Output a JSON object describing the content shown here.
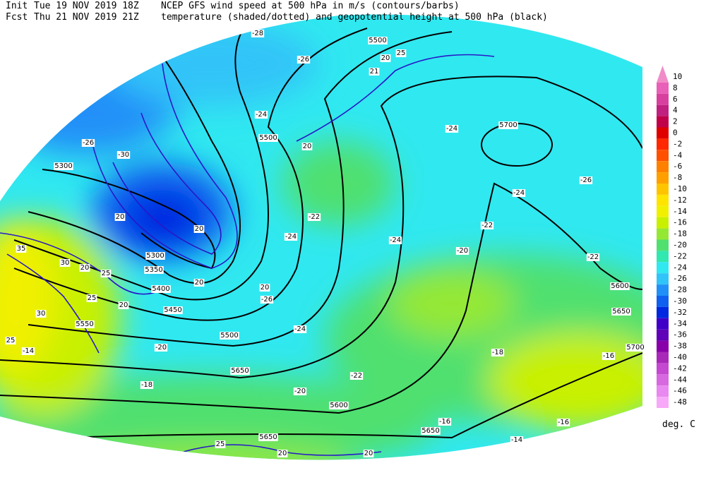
{
  "header": {
    "init_label": "Init",
    "init_time": "Tue 19 NOV 2019 18Z",
    "fcst_label": "Fcst",
    "fcst_time": "Thu 21 NOV 2019 21Z",
    "line1": "NCEP GFS wind speed at 500 hPa in m/s (contours/barbs)",
    "line2": "temperature (shaded/dotted) and geopotential height at 500 hPa (black)"
  },
  "colorbar": {
    "levels": [
      10,
      8,
      6,
      4,
      2,
      0,
      -2,
      -4,
      -6,
      -8,
      -10,
      -12,
      -14,
      -16,
      -18,
      -20,
      -22,
      -24,
      -26,
      -28,
      -30,
      -32,
      -34,
      -36,
      -38,
      -40,
      -42,
      -44,
      -46,
      -48
    ],
    "colors": [
      "#f08cc8",
      "#e860b8",
      "#d840a0",
      "#c02080",
      "#c00048",
      "#e00000",
      "#ff2800",
      "#ff5000",
      "#ff8000",
      "#ffa000",
      "#ffc400",
      "#ffe400",
      "#f0f000",
      "#c8f000",
      "#94e834",
      "#50e070",
      "#30e8b0",
      "#30e8f0",
      "#30c4f8",
      "#2090f8",
      "#1060f0",
      "#0028e0",
      "#4000c8",
      "#6000b8",
      "#8800a8",
      "#a828b8",
      "#c448d0",
      "#d868e0",
      "#e888f0",
      "#f8a8f8"
    ],
    "unit": "deg. C"
  },
  "map": {
    "height_labels": [
      5300,
      5500,
      5700,
      5300,
      5350,
      5400,
      5450,
      5500,
      5550,
      5600,
      5650,
      5650,
      5600,
      5650,
      5650,
      5700,
      5500
    ],
    "temperature_labels": [
      -28,
      -26,
      -24,
      -24,
      -26,
      -30,
      -24,
      -26,
      -22,
      -24,
      -24,
      -22,
      -20,
      -22,
      -26,
      -24,
      -20,
      -18,
      -22,
      -20,
      -18,
      -16,
      -16,
      -16,
      -14,
      -14
    ],
    "wind_labels": [
      20,
      20,
      25,
      20,
      20,
      20,
      30,
      35,
      30,
      25,
      25,
      20,
      20,
      21,
      25,
      20,
      25,
      20,
      20
    ]
  }
}
